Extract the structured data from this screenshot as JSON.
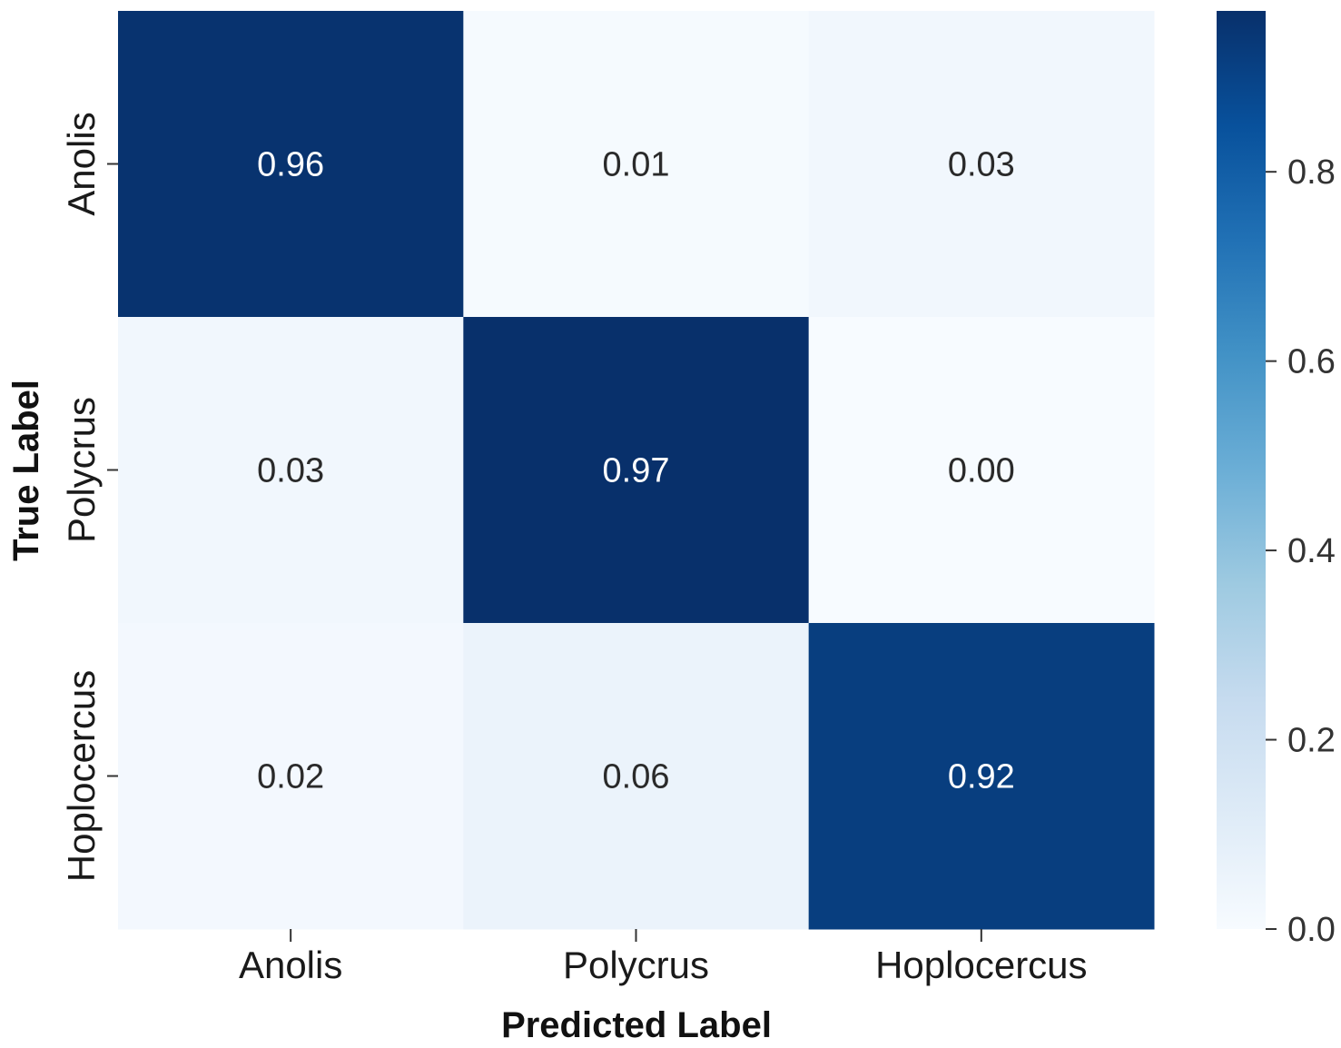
{
  "chart_data": {
    "type": "heatmap",
    "x_categories": [
      "Anolis",
      "Polycrus",
      "Hoplocercus"
    ],
    "y_categories": [
      "Anolis",
      "Polycrus",
      "Hoplocercus"
    ],
    "values": [
      [
        0.96,
        0.01,
        0.03
      ],
      [
        0.03,
        0.97,
        0.0
      ],
      [
        0.02,
        0.06,
        0.92
      ]
    ],
    "value_labels": [
      [
        "0.96",
        "0.01",
        "0.03"
      ],
      [
        "0.03",
        "0.97",
        "0.00"
      ],
      [
        "0.02",
        "0.06",
        "0.92"
      ]
    ],
    "xlabel": "Predicted Label",
    "ylabel": "True Label",
    "colormap": "Blues",
    "colorbar": {
      "range": [
        0.0,
        0.97
      ],
      "ticks": [
        0.0,
        0.2,
        0.4,
        0.6,
        0.8
      ],
      "tick_labels": [
        "0.0",
        "0.2",
        "0.4",
        "0.6",
        "0.8"
      ]
    },
    "colors": {
      "low": "#f7fbff",
      "high": "#08306b"
    }
  }
}
